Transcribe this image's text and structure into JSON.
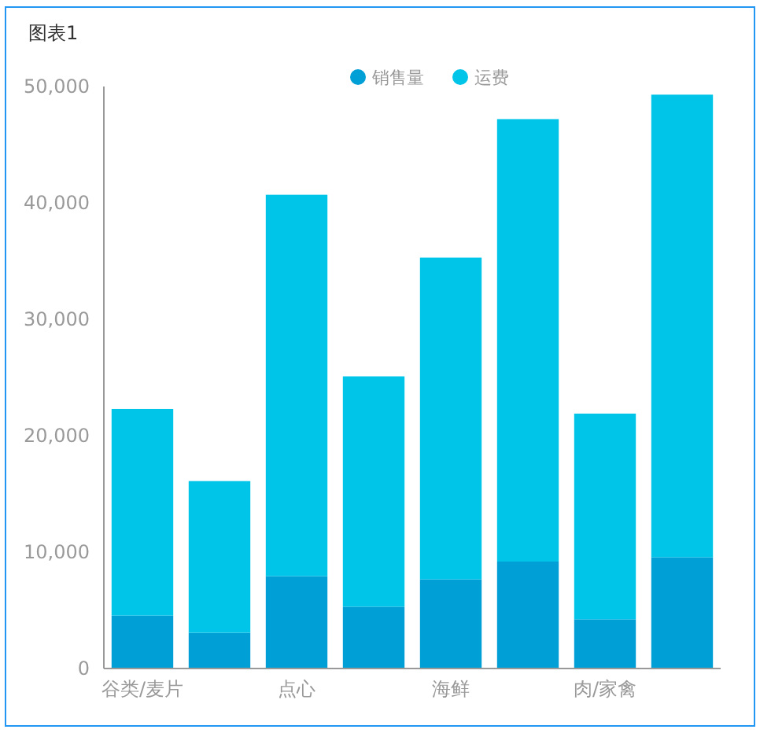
{
  "chart_data": {
    "type": "bar",
    "title": "图表1",
    "stacked": true,
    "legend": "top",
    "grid": false,
    "categories": [
      "谷类/麦片",
      null,
      "点心",
      null,
      "海鲜",
      null,
      "肉/家禽",
      null
    ],
    "series": [
      {
        "name": "销售量",
        "color": "#009fd6",
        "values": [
          4550,
          3070,
          7930,
          5310,
          7660,
          9190,
          4230,
          9550
        ]
      },
      {
        "name": "运费",
        "color": "#00c5e8",
        "values": [
          17750,
          13030,
          32770,
          19790,
          27640,
          38010,
          17670,
          39750
        ]
      }
    ],
    "ylim": [
      0,
      50000
    ],
    "yticks": [
      {
        "value": 0,
        "label": "0"
      },
      {
        "value": 10000,
        "label": "10,000"
      },
      {
        "value": 20000,
        "label": "20,000"
      },
      {
        "value": 30000,
        "label": "30,000"
      },
      {
        "value": 40000,
        "label": "40,000"
      },
      {
        "value": 50000,
        "label": "50,000"
      }
    ]
  }
}
